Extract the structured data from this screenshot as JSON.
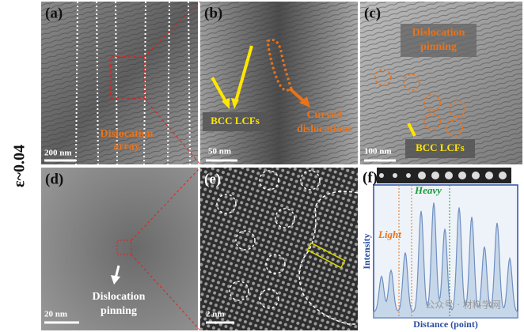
{
  "strain_label": "ε~0.04",
  "panels": [
    {
      "label": "(a)",
      "scale_bar": "200 nm",
      "annotation_line1": "Dislocation",
      "annotation_line2": "array"
    },
    {
      "label": "(b)",
      "scale_bar": "50 nm",
      "annotation_box": "BCC LCFs",
      "annotation_line1": "Curved",
      "annotation_line2": "dislocations"
    },
    {
      "label": "(c)",
      "scale_bar": "100 nm",
      "annotation_box": "BCC LCFs",
      "annotation_line1": "Dislocation",
      "annotation_line2": "pinning"
    },
    {
      "label": "(d)",
      "scale_bar": "20 nm",
      "annotation_line1": "Dislocation",
      "annotation_line2": "pinning"
    },
    {
      "label": "(e)",
      "scale_bar": "2 nm"
    },
    {
      "label": "(f)",
      "y_axis_label": "Intensity",
      "x_axis_label": "Distance (point)",
      "light_label": "Light",
      "heavy_label": "Heavy"
    }
  ],
  "watermark": "公众号 · 材料学网"
}
